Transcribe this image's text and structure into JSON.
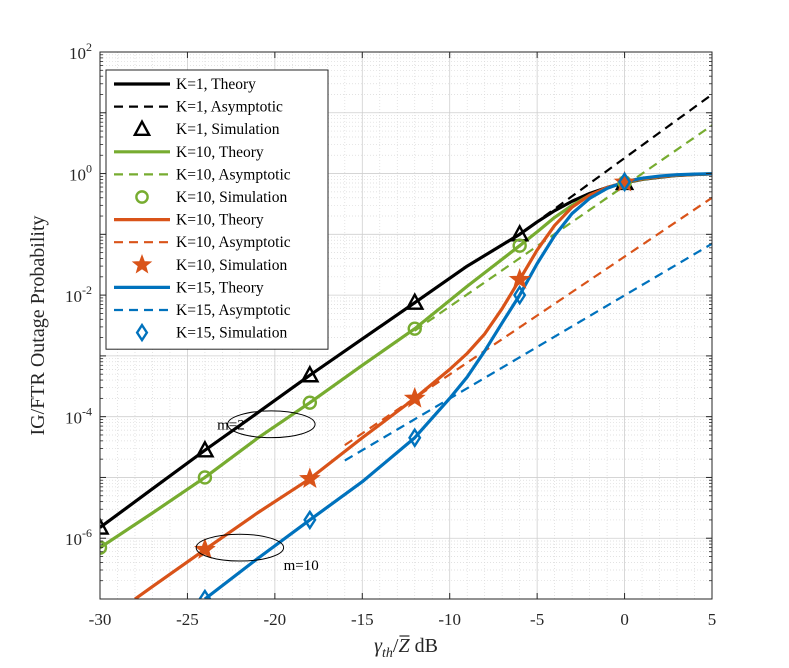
{
  "chart_data": {
    "type": "line",
    "title": "",
    "xlabel_main": "γ",
    "xlabel_sub": "th",
    "xlabel_mid": "/",
    "xlabel_bar": "Z",
    "xlabel_unit": " dB",
    "ylabel": "IG/FTR Outage Probability",
    "xlim": [
      -30,
      5
    ],
    "ylog_range": [
      -7,
      2
    ],
    "grid": true,
    "x_ticks": [
      "-30",
      "-25",
      "-20",
      "-15",
      "-10",
      "-5",
      "0",
      "5"
    ],
    "x_tick_values": [
      -30,
      -25,
      -20,
      -15,
      -10,
      -5,
      0,
      5
    ],
    "y_tick_exps": [
      -6,
      -4,
      -2,
      0,
      2
    ],
    "y_tick_base": "10",
    "y_tick_powers": [
      "-6",
      "-4",
      "-2",
      "0",
      "2"
    ],
    "legend_position": "top-left",
    "series": [
      {
        "name": "K=1, Theory",
        "kind": "theory",
        "color": "#000000",
        "x": [
          -30,
          -27,
          -24,
          -21,
          -18,
          -15,
          -12,
          -9,
          -6,
          -5,
          -4,
          -3,
          -2,
          -1,
          0,
          1,
          2,
          3,
          4,
          5
        ],
        "y": [
          1.5e-06,
          6.5e-06,
          2.8e-05,
          0.000115,
          0.00048,
          0.0019,
          0.0075,
          0.03,
          0.1,
          0.16,
          0.245,
          0.35,
          0.47,
          0.59,
          0.7,
          0.8,
          0.87,
          0.93,
          0.965,
          0.985
        ]
      },
      {
        "name": "K=1, Asymptotic",
        "kind": "asymptotic",
        "color": "#000000",
        "x": [
          -6,
          5
        ],
        "y": [
          0.1,
          20
        ]
      },
      {
        "name": "K=1, Simulation",
        "kind": "simulation",
        "marker": "triangle",
        "color": "#000000",
        "x": [
          -30,
          -24,
          -18,
          -12,
          -6,
          0
        ],
        "y": [
          1.5e-06,
          2.8e-05,
          0.00048,
          0.0075,
          0.1,
          0.7
        ]
      },
      {
        "name": "K=10, Theory",
        "kind": "theory",
        "color": "#77ac30",
        "x": [
          -30,
          -27,
          -24,
          -21,
          -18,
          -15,
          -12,
          -9,
          -6,
          -5,
          -4,
          -3,
          -2,
          -1,
          0,
          1,
          2,
          3,
          4,
          5
        ],
        "y": [
          7e-07,
          2.6e-06,
          1e-05,
          4.4e-05,
          0.00017,
          0.0007,
          0.0028,
          0.014,
          0.065,
          0.11,
          0.19,
          0.3,
          0.44,
          0.58,
          0.71,
          0.81,
          0.88,
          0.935,
          0.97,
          0.99
        ]
      },
      {
        "name": "K=10, Asymptotic",
        "kind": "asymptotic",
        "color": "#77ac30",
        "x": [
          -12,
          5
        ],
        "y": [
          0.0026,
          6.2
        ]
      },
      {
        "name": "K=10, Simulation",
        "kind": "simulation",
        "marker": "circle",
        "color": "#77ac30",
        "x": [
          -30,
          -24,
          -18,
          -12,
          -6,
          0
        ],
        "y": [
          7e-07,
          1e-05,
          0.00017,
          0.0028,
          0.065,
          0.71
        ]
      },
      {
        "name": "K=10, Theory",
        "kind": "theory",
        "color": "#d95319",
        "x": [
          -28,
          -27,
          -24,
          -21,
          -18,
          -15,
          -12,
          -10,
          -9,
          -8,
          -7,
          -6,
          -5,
          -4,
          -3,
          -2,
          -1,
          0,
          1,
          2,
          3,
          4,
          5
        ],
        "y": [
          1e-07,
          1.6e-07,
          6.5e-07,
          2.6e-06,
          9.5e-06,
          4.5e-05,
          0.0002,
          0.0006,
          0.0011,
          0.0023,
          0.006,
          0.018,
          0.055,
          0.14,
          0.28,
          0.44,
          0.59,
          0.72,
          0.82,
          0.89,
          0.94,
          0.97,
          0.99
        ]
      },
      {
        "name": "K=10, Asymptotic",
        "kind": "asymptotic",
        "color": "#d95319",
        "x": [
          -16,
          5
        ],
        "y": [
          3.4e-05,
          0.4
        ]
      },
      {
        "name": "K=10, Simulation",
        "kind": "simulation",
        "marker": "star",
        "color": "#d95319",
        "x": [
          -24,
          -18,
          -12,
          -6,
          0
        ],
        "y": [
          6.5e-07,
          9.5e-06,
          0.0002,
          0.018,
          0.72
        ]
      },
      {
        "name": "K=15, Theory",
        "kind": "theory",
        "color": "#0072bd",
        "x": [
          -24,
          -21,
          -18,
          -15,
          -12,
          -10,
          -9,
          -8,
          -7,
          -6,
          -5,
          -4,
          -3,
          -2,
          -1,
          0,
          1,
          2,
          3,
          4,
          5
        ],
        "y": [
          1e-07,
          4.6e-07,
          2e-06,
          8.5e-06,
          4.5e-05,
          0.0002,
          0.00045,
          0.0012,
          0.0035,
          0.01,
          0.033,
          0.095,
          0.22,
          0.39,
          0.57,
          0.73,
          0.84,
          0.91,
          0.955,
          0.98,
          0.995
        ]
      },
      {
        "name": "K=15, Asymptotic",
        "kind": "asymptotic",
        "color": "#0072bd",
        "x": [
          -16,
          5
        ],
        "y": [
          1.9e-05,
          0.07
        ]
      },
      {
        "name": "K=15, Simulation",
        "kind": "simulation",
        "marker": "diamond",
        "color": "#0072bd",
        "x": [
          -24,
          -18,
          -12,
          -6,
          0
        ],
        "y": [
          1e-07,
          2e-06,
          4.5e-05,
          0.01,
          0.73
        ]
      }
    ],
    "annotations": [
      {
        "text": "m=2",
        "x": -23.3,
        "y": 7.5e-05,
        "ellipse": {
          "cx": -20.2,
          "cy": 7.5e-05,
          "rx_data": 2.5,
          "ry_decades": 0.22
        }
      },
      {
        "text": "m=10",
        "x": -19.5,
        "y": 3.6e-07,
        "ellipse": {
          "cx": -22.0,
          "cy": 7e-07,
          "rx_data": 2.5,
          "ry_decades": 0.22
        }
      }
    ]
  }
}
